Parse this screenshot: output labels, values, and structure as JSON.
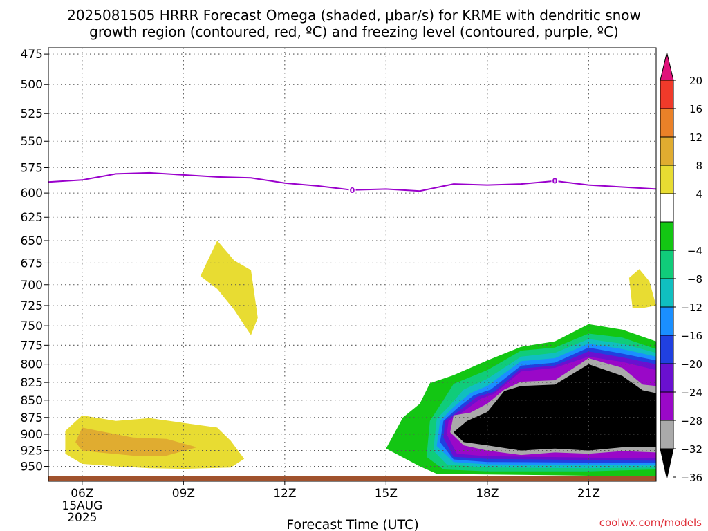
{
  "title_line1": "2025081505 HRRR Forecast Omega (shaded, μbar/s) for KRME with dendritic snow",
  "title_line2": "growth region (contoured, red, ºC) and freezing level (contoured, purple, ºC)",
  "credit": "coolwx.com/models",
  "colors": {
    "freezing_line": "#9a00cc",
    "ground": "#a0522d",
    "grid": "#555555"
  },
  "chart_data": {
    "type": "heatmap",
    "xlabel": "Forecast Time (UTC)",
    "x_ticks": [
      {
        "hour": 6,
        "label": "06Z",
        "sublabels": [
          "15AUG",
          "2025"
        ]
      },
      {
        "hour": 9,
        "label": "09Z",
        "sublabels": []
      },
      {
        "hour": 12,
        "label": "12Z",
        "sublabels": []
      },
      {
        "hour": 15,
        "label": "15Z",
        "sublabels": []
      },
      {
        "hour": 18,
        "label": "18Z",
        "sublabels": []
      },
      {
        "hour": 21,
        "label": "21Z",
        "sublabels": []
      }
    ],
    "xlim": [
      5,
      23
    ],
    "ylabel": "",
    "y_ticks": [
      475,
      500,
      525,
      550,
      575,
      600,
      625,
      650,
      675,
      700,
      725,
      750,
      775,
      800,
      825,
      850,
      875,
      900,
      925,
      950
    ],
    "ylim": [
      470,
      965
    ],
    "y_scale": "log-pressure",
    "grid": true,
    "colorbar": {
      "labels": [
        "20",
        "16",
        "12",
        "8",
        "4",
        "−4",
        "−8",
        "−12",
        "−16",
        "−20",
        "−24",
        "−28",
        "−32",
        "−36"
      ],
      "bins": [
        {
          "range": [
            20,
            null
          ],
          "color": "#e0127a"
        },
        {
          "range": [
            16,
            20
          ],
          "color": "#f03a2a"
        },
        {
          "range": [
            12,
            16
          ],
          "color": "#ea8128"
        },
        {
          "range": [
            8,
            12
          ],
          "color": "#e0ac30"
        },
        {
          "range": [
            4,
            8
          ],
          "color": "#e8dc32"
        },
        {
          "range": [
            -4,
            4
          ],
          "color": "#ffffff"
        },
        {
          "range": [
            -8,
            -4
          ],
          "color": "#13c613"
        },
        {
          "range": [
            -12,
            -8
          ],
          "color": "#10cc7a"
        },
        {
          "range": [
            -16,
            -12
          ],
          "color": "#10bfc0"
        },
        {
          "range": [
            -20,
            -16
          ],
          "color": "#1a8fff"
        },
        {
          "range": [
            -24,
            -20
          ],
          "color": "#2040e0"
        },
        {
          "range": [
            -28,
            -24
          ],
          "color": "#6a10d0"
        },
        {
          "range": [
            -32,
            -28
          ],
          "color": "#9a08c8"
        },
        {
          "range": [
            -36,
            -32
          ],
          "color": "#aaaaaa"
        },
        {
          "range": [
            null,
            -36
          ],
          "color": "#000000"
        }
      ]
    },
    "freezing_level": {
      "label": "0",
      "label_hours": [
        14,
        20
      ],
      "points": [
        [
          5,
          589
        ],
        [
          6,
          587
        ],
        [
          7,
          581
        ],
        [
          8,
          580
        ],
        [
          9,
          582
        ],
        [
          10,
          584
        ],
        [
          11,
          585
        ],
        [
          12,
          590
        ],
        [
          13,
          593
        ],
        [
          14,
          597
        ],
        [
          15,
          596
        ],
        [
          16,
          598
        ],
        [
          17,
          591
        ],
        [
          18,
          592
        ],
        [
          19,
          591
        ],
        [
          20,
          588
        ],
        [
          21,
          592
        ],
        [
          22,
          594
        ],
        [
          23,
          596
        ]
      ]
    },
    "regions": [
      {
        "value": 4,
        "color": "#e8dc32",
        "points": [
          [
            10.0,
            650
          ],
          [
            10.5,
            672
          ],
          [
            11.0,
            683
          ],
          [
            11.2,
            740
          ],
          [
            11.0,
            762
          ],
          [
            10.5,
            730
          ],
          [
            10.0,
            705
          ],
          [
            9.5,
            690
          ]
        ]
      },
      {
        "value": 4,
        "color": "#e8dc32",
        "points": [
          [
            22.2,
            692
          ],
          [
            22.5,
            682
          ],
          [
            22.8,
            696
          ],
          [
            23.0,
            725
          ],
          [
            22.6,
            728
          ],
          [
            22.3,
            728
          ]
        ]
      },
      {
        "value": 4,
        "color": "#e8dc32",
        "points": [
          [
            5.5,
            895
          ],
          [
            6.0,
            872
          ],
          [
            7.0,
            880
          ],
          [
            8.0,
            876
          ],
          [
            9.0,
            883
          ],
          [
            10.0,
            890
          ],
          [
            10.4,
            910
          ],
          [
            10.8,
            938
          ],
          [
            10.4,
            952
          ],
          [
            9.0,
            954
          ],
          [
            8.0,
            953
          ],
          [
            7.0,
            950
          ],
          [
            6.0,
            946
          ],
          [
            5.5,
            930
          ]
        ]
      },
      {
        "value": 8,
        "color": "#e0ac30",
        "points": [
          [
            5.8,
            912
          ],
          [
            6.0,
            890
          ],
          [
            6.5,
            895
          ],
          [
            7.5,
            905
          ],
          [
            8.5,
            907
          ],
          [
            9.4,
            920
          ],
          [
            8.5,
            933
          ],
          [
            7.5,
            933
          ],
          [
            6.5,
            928
          ],
          [
            6.0,
            925
          ]
        ]
      },
      {
        "value": -4,
        "color": "#13c613",
        "points": [
          [
            15.0,
            922
          ],
          [
            15.5,
            875
          ],
          [
            16.0,
            855
          ],
          [
            16.3,
            826
          ],
          [
            17.0,
            815
          ],
          [
            18.0,
            795
          ],
          [
            19.0,
            777
          ],
          [
            20.0,
            770
          ],
          [
            21.0,
            748
          ],
          [
            22.0,
            755
          ],
          [
            23.0,
            770
          ],
          [
            23.0,
            965
          ],
          [
            21.0,
            965
          ],
          [
            18.0,
            963
          ],
          [
            16.5,
            962
          ],
          [
            16.0,
            950
          ]
        ]
      },
      {
        "value": -8,
        "color": "#10cc7a",
        "points": [
          [
            16.2,
            935
          ],
          [
            16.3,
            880
          ],
          [
            16.7,
            850
          ],
          [
            17.0,
            827
          ],
          [
            18.0,
            808
          ],
          [
            19.0,
            782
          ],
          [
            20.0,
            778
          ],
          [
            21.0,
            760
          ],
          [
            22.0,
            765
          ],
          [
            23.0,
            780
          ],
          [
            23.0,
            955
          ],
          [
            21.0,
            958
          ],
          [
            18.0,
            958
          ],
          [
            16.7,
            955
          ]
        ]
      },
      {
        "value": -12,
        "color": "#10bfc0",
        "points": [
          [
            16.4,
            925
          ],
          [
            16.5,
            877
          ],
          [
            16.9,
            857
          ],
          [
            17.3,
            835
          ],
          [
            18.0,
            820
          ],
          [
            19.0,
            790
          ],
          [
            20.0,
            785
          ],
          [
            21.0,
            767
          ],
          [
            22.0,
            773
          ],
          [
            23.0,
            785
          ],
          [
            23.0,
            952
          ],
          [
            21.0,
            953
          ],
          [
            18.0,
            952
          ],
          [
            16.8,
            947
          ]
        ]
      },
      {
        "value": -16,
        "color": "#1a8fff",
        "points": [
          [
            16.5,
            918
          ],
          [
            16.6,
            880
          ],
          [
            17.0,
            860
          ],
          [
            17.5,
            840
          ],
          [
            18.0,
            830
          ],
          [
            19.0,
            796
          ],
          [
            20.0,
            792
          ],
          [
            21.0,
            773
          ],
          [
            22.0,
            780
          ],
          [
            23.0,
            790
          ],
          [
            23.0,
            948
          ],
          [
            21.0,
            948
          ],
          [
            18.0,
            947
          ],
          [
            17.0,
            943
          ]
        ]
      },
      {
        "value": -20,
        "color": "#2040e0",
        "points": [
          [
            16.6,
            912
          ],
          [
            16.7,
            880
          ],
          [
            17.1,
            862
          ],
          [
            17.6,
            843
          ],
          [
            18.1,
            835
          ],
          [
            19.0,
            802
          ],
          [
            20.0,
            798
          ],
          [
            21.0,
            778
          ],
          [
            22.0,
            786
          ],
          [
            23.0,
            795
          ],
          [
            23.0,
            944
          ],
          [
            21.0,
            944
          ],
          [
            18.0,
            943
          ],
          [
            17.0,
            939
          ]
        ]
      },
      {
        "value": -24,
        "color": "#6a10d0",
        "points": [
          [
            16.7,
            905
          ],
          [
            16.75,
            880
          ],
          [
            17.2,
            864
          ],
          [
            17.7,
            845
          ],
          [
            18.2,
            838
          ],
          [
            19.0,
            806
          ],
          [
            20.0,
            802
          ],
          [
            21.0,
            783
          ],
          [
            22.0,
            791
          ],
          [
            23.0,
            800
          ],
          [
            23.0,
            941
          ],
          [
            21.0,
            940
          ],
          [
            18.0,
            938
          ],
          [
            17.0,
            935
          ]
        ]
      },
      {
        "value": -28,
        "color": "#9a08c8",
        "points": [
          [
            16.8,
            900
          ],
          [
            16.85,
            880
          ],
          [
            17.3,
            866
          ],
          [
            17.8,
            848
          ],
          [
            18.2,
            841
          ],
          [
            19.0,
            810
          ],
          [
            20.0,
            805
          ],
          [
            21.0,
            790
          ],
          [
            22.0,
            797
          ],
          [
            23.0,
            808
          ],
          [
            23.0,
            937
          ],
          [
            21.0,
            936
          ],
          [
            18.0,
            934
          ],
          [
            17.1,
            930
          ]
        ]
      },
      {
        "value": -32,
        "color": "#aaaaaa",
        "points": [
          [
            16.9,
            897
          ],
          [
            17.0,
            872
          ],
          [
            17.5,
            868
          ],
          [
            18.0,
            855
          ],
          [
            18.5,
            835
          ],
          [
            19.0,
            824
          ],
          [
            20.0,
            822
          ],
          [
            21.0,
            792
          ],
          [
            22.0,
            805
          ],
          [
            22.6,
            828
          ],
          [
            23.0,
            830
          ],
          [
            23.0,
            928
          ],
          [
            22.0,
            926
          ],
          [
            21.0,
            930
          ],
          [
            20.0,
            928
          ],
          [
            19.0,
            932
          ],
          [
            18.0,
            925
          ],
          [
            17.3,
            917
          ]
        ]
      },
      {
        "value": -36,
        "color": "#000000",
        "points": [
          [
            17.0,
            897
          ],
          [
            17.4,
            880
          ],
          [
            18.0,
            867
          ],
          [
            18.5,
            837
          ],
          [
            19.0,
            830
          ],
          [
            20.0,
            828
          ],
          [
            21.0,
            800
          ],
          [
            22.0,
            816
          ],
          [
            22.6,
            836
          ],
          [
            23.0,
            840
          ],
          [
            23.0,
            920
          ],
          [
            22.0,
            920
          ],
          [
            21.0,
            925
          ],
          [
            20.0,
            922
          ],
          [
            19.0,
            925
          ],
          [
            18.0,
            917
          ],
          [
            17.3,
            912
          ]
        ]
      }
    ]
  }
}
